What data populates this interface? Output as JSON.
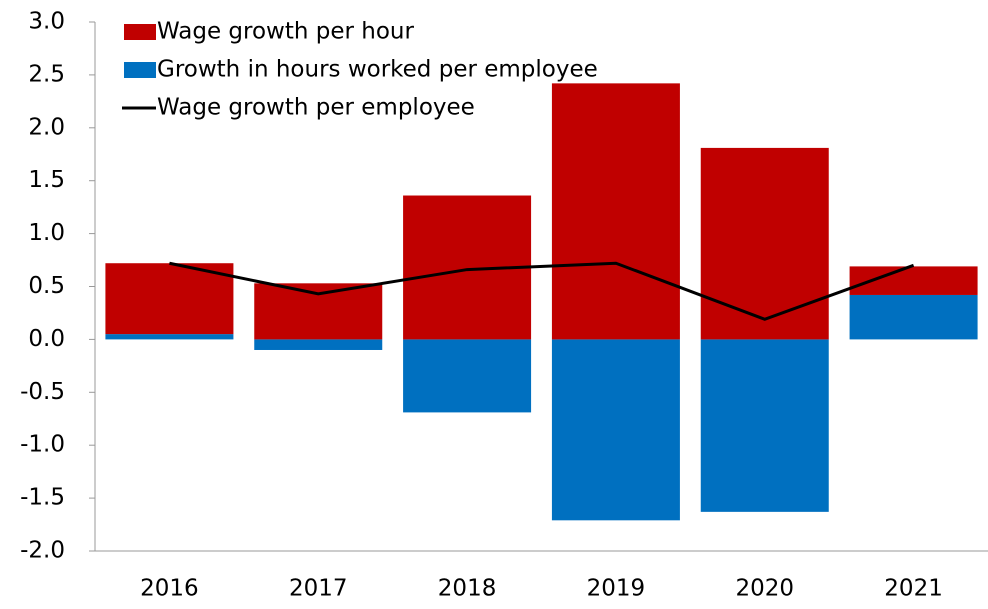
{
  "chart_data": {
    "type": "bar",
    "stacked": true,
    "categories": [
      "2016",
      "2017",
      "2018",
      "2019",
      "2020",
      "2021"
    ],
    "series": [
      {
        "name": "Wage growth per hour",
        "color": "#c00000",
        "values": [
          0.67,
          0.53,
          1.36,
          2.42,
          1.81,
          0.27
        ]
      },
      {
        "name": "Growth in hours worked per employee",
        "color": "#0070c0",
        "values": [
          0.05,
          -0.1,
          -0.69,
          -1.71,
          -1.63,
          0.42
        ]
      },
      {
        "name": "Wage growth per employee",
        "type": "line",
        "color": "#000000",
        "values": [
          0.72,
          0.43,
          0.66,
          0.72,
          0.19,
          0.7
        ]
      }
    ],
    "ylim": [
      -2,
      3
    ],
    "yticks": [
      {
        "value": -2,
        "label": "-2.0"
      },
      {
        "value": -1.5,
        "label": "-1.5"
      },
      {
        "value": -1,
        "label": "-1.0"
      },
      {
        "value": -0.5,
        "label": "-0.5"
      },
      {
        "value": 0,
        "label": "0.0"
      },
      {
        "value": 0.5,
        "label": "0.5"
      },
      {
        "value": 1,
        "label": "1.0"
      },
      {
        "value": 1.5,
        "label": "1.5"
      },
      {
        "value": 2,
        "label": "2.0"
      },
      {
        "value": 2.5,
        "label": "2.5"
      },
      {
        "value": 3,
        "label": "3.0"
      }
    ],
    "legend": "upper left"
  }
}
